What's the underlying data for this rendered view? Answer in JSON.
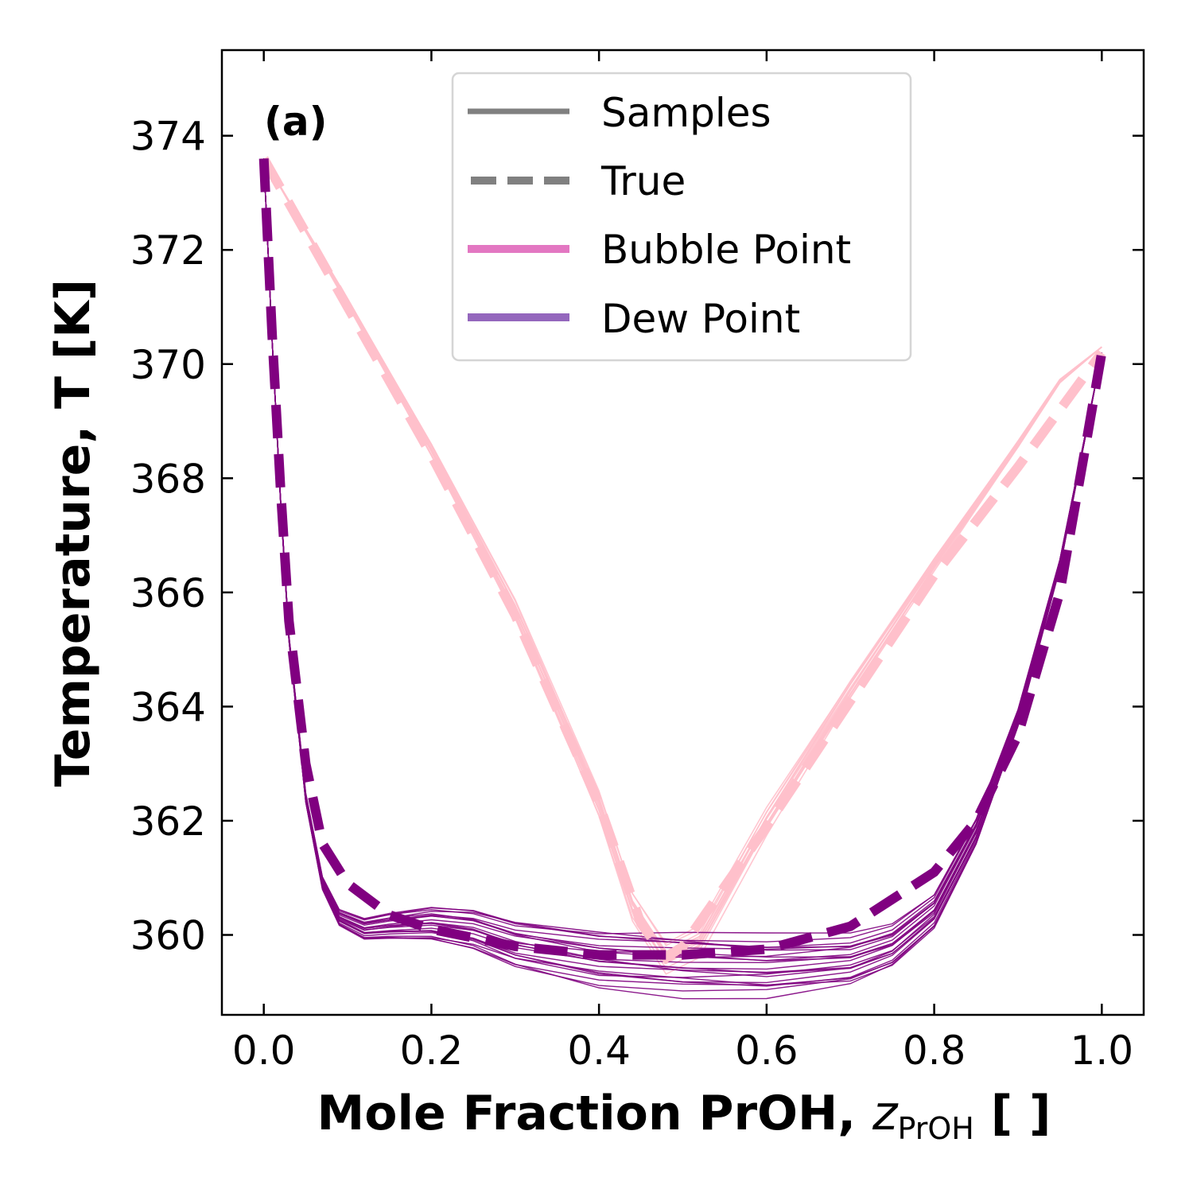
{
  "chart_data": {
    "type": "line",
    "panel_label": "(a)",
    "xlabel": {
      "prefix": "Mole Fraction PrOH, ",
      "var": "z",
      "sub": "PrOH",
      "suffix": " [ ]"
    },
    "ylabel": "Temperature, T [K]",
    "xlim": [
      -0.05,
      1.05
    ],
    "ylim": [
      358.6,
      375.5
    ],
    "xticks": [
      0.0,
      0.2,
      0.4,
      0.6,
      0.8,
      1.0
    ],
    "xtick_labels": [
      "0.0",
      "0.2",
      "0.4",
      "0.6",
      "0.8",
      "1.0"
    ],
    "yticks": [
      360,
      362,
      364,
      366,
      368,
      370,
      372,
      374
    ],
    "ytick_labels": [
      "360",
      "362",
      "364",
      "366",
      "368",
      "370",
      "372",
      "374"
    ],
    "legend": {
      "placement": "top-center",
      "entries": [
        {
          "label": "Samples",
          "style": "solid",
          "color": "#808080"
        },
        {
          "label": "True",
          "style": "dashed",
          "color": "#808080"
        },
        {
          "label": "Bubble Point",
          "style": "solid",
          "color": "#e377c2"
        },
        {
          "label": "Dew Point",
          "style": "solid",
          "color": "#9467bd"
        }
      ]
    },
    "colors": {
      "bubble": "#ffc0cb",
      "dew": "#800080"
    },
    "series": [
      {
        "name": "True Bubble Point",
        "style": "dashed",
        "color": "#ffc0cb",
        "x": [
          0.0,
          0.1,
          0.2,
          0.3,
          0.4,
          0.45,
          0.48,
          0.5,
          0.6,
          0.7,
          0.8,
          0.9,
          1.0
        ],
        "y": [
          373.6,
          371.0,
          368.4,
          365.6,
          362.3,
          360.2,
          359.6,
          359.8,
          361.9,
          364.1,
          366.3,
          368.2,
          370.2
        ]
      },
      {
        "name": "True Dew Point",
        "style": "dashed",
        "color": "#800080",
        "x": [
          0.0,
          0.01,
          0.02,
          0.03,
          0.05,
          0.07,
          0.1,
          0.15,
          0.2,
          0.3,
          0.4,
          0.5,
          0.6,
          0.7,
          0.8,
          0.85,
          0.9,
          0.95,
          0.98,
          1.0
        ],
        "y": [
          373.6,
          370.5,
          367.8,
          365.5,
          363.0,
          361.6,
          360.9,
          360.35,
          360.1,
          359.8,
          359.65,
          359.65,
          359.75,
          360.15,
          361.1,
          362.0,
          363.5,
          366.0,
          368.5,
          370.2
        ]
      },
      {
        "name": "Bubble Point Samples",
        "style": "solid",
        "color": "#ffc0cb",
        "x": [
          0.0,
          0.1,
          0.2,
          0.3,
          0.4,
          0.44,
          0.48,
          0.52,
          0.6,
          0.7,
          0.8,
          0.9,
          0.95,
          1.0
        ],
        "y": [
          373.6,
          371.1,
          368.5,
          365.7,
          362.3,
          360.5,
          359.6,
          359.9,
          362.0,
          364.3,
          366.5,
          368.6,
          369.7,
          370.3
        ]
      },
      {
        "name": "Dew Point Samples",
        "style": "solid",
        "color": "#800080",
        "x": [
          0.0,
          0.01,
          0.02,
          0.03,
          0.05,
          0.07,
          0.09,
          0.12,
          0.15,
          0.2,
          0.25,
          0.3,
          0.4,
          0.5,
          0.6,
          0.7,
          0.75,
          0.8,
          0.85,
          0.9,
          0.95,
          1.0
        ],
        "y": [
          373.6,
          370.4,
          367.6,
          365.2,
          362.4,
          360.9,
          360.3,
          360.1,
          360.15,
          360.2,
          360.1,
          359.85,
          359.6,
          359.5,
          359.45,
          359.55,
          359.8,
          360.4,
          361.8,
          363.8,
          366.5,
          370.2
        ]
      }
    ]
  }
}
